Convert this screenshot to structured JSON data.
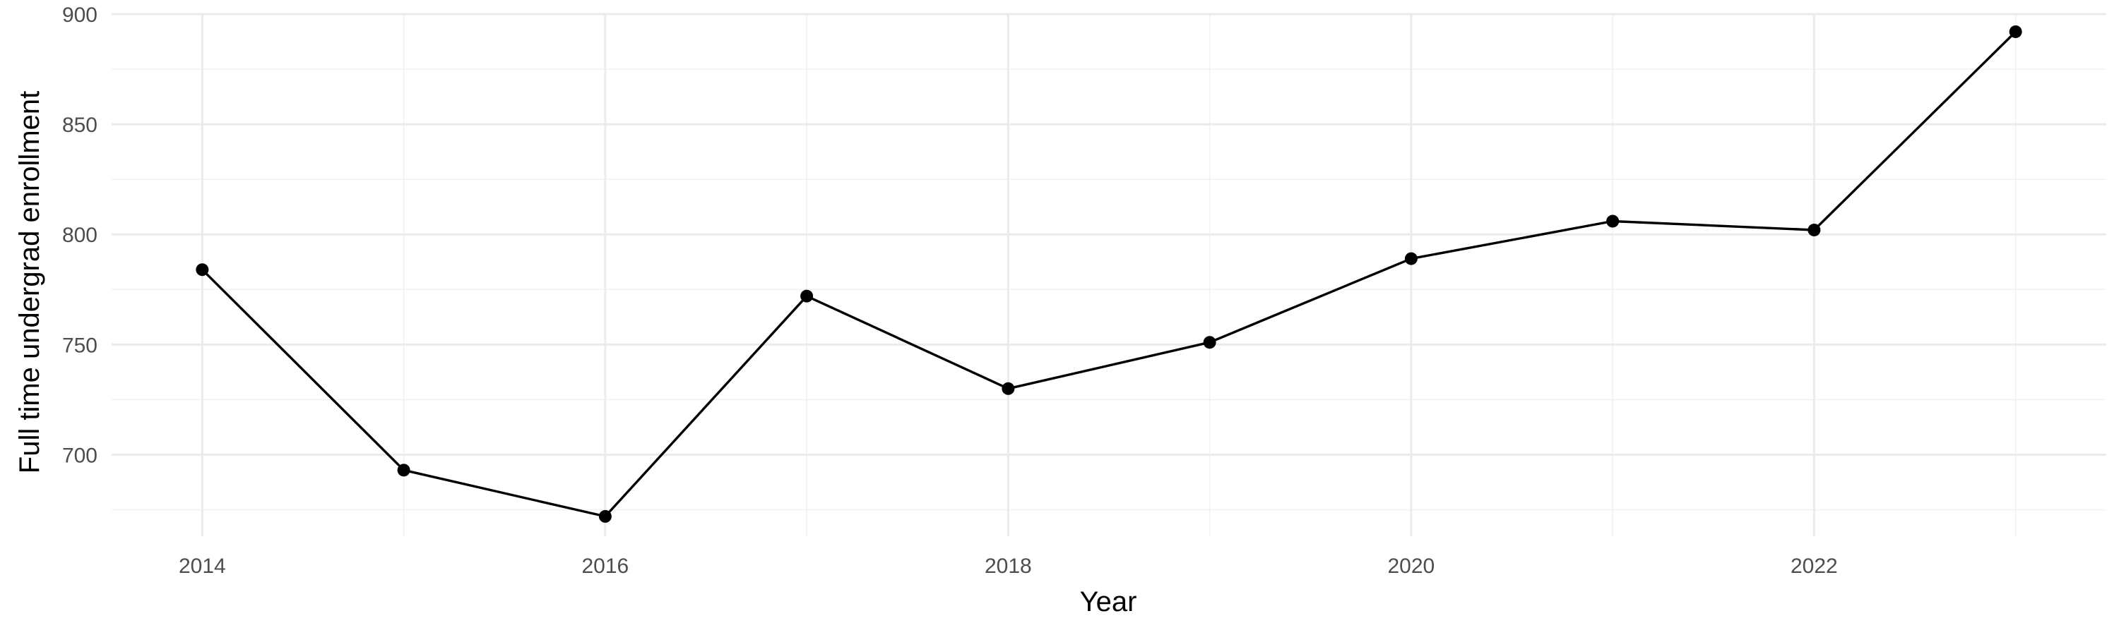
{
  "chart_data": {
    "type": "line",
    "title": "",
    "xlabel": "Year",
    "ylabel": "Full time undergrad enrollment",
    "x": [
      2014,
      2015,
      2016,
      2017,
      2018,
      2019,
      2020,
      2021,
      2022,
      2023
    ],
    "series": [
      {
        "values": [
          784,
          693,
          672,
          772,
          730,
          751,
          789,
          806,
          802,
          892
        ]
      }
    ],
    "xlim": [
      2013.55,
      2023.45
    ],
    "ylim": [
      663,
      900
    ],
    "x_ticks": [
      2014,
      2016,
      2018,
      2020,
      2022
    ],
    "x_minor_ticks": [
      2015,
      2017,
      2019,
      2021,
      2023
    ],
    "y_ticks": [
      700,
      750,
      800,
      850,
      900
    ],
    "y_minor_ticks": [
      675,
      725,
      775,
      825,
      875
    ],
    "grid": true,
    "legend": "none",
    "line_color": "#000000",
    "point_color": "#000000",
    "grid_color": "#ebebeb"
  }
}
